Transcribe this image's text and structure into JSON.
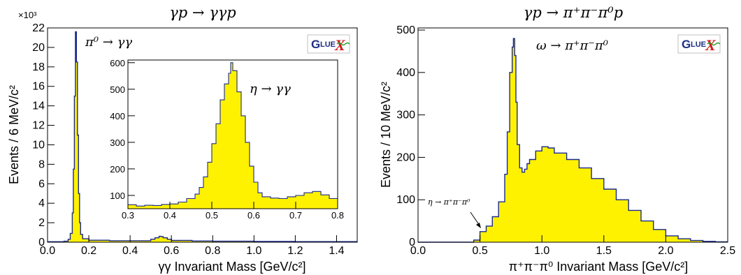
{
  "chart_data": [
    {
      "id": "left",
      "type": "histogram",
      "title": "γp → γγp",
      "xlabel": "γγ Invariant Mass [GeV/c²]",
      "ylabel": "Events / 6 MeV/c²",
      "y_multiplier_label": "×10³",
      "xlim": [
        0.0,
        1.5
      ],
      "ylim": [
        0,
        22
      ],
      "xticks": [
        "0.0",
        "0.2",
        "0.4",
        "0.6",
        "0.8",
        "1.0",
        "1.2",
        "1.4"
      ],
      "yticks": [
        "0",
        "2",
        "4",
        "6",
        "8",
        "10",
        "12",
        "14",
        "16",
        "18",
        "20",
        "22"
      ],
      "annotation": "π⁰ → γγ",
      "logo": {
        "g": "G",
        "lue": "LUE",
        "x": "X"
      },
      "x": [
        0.0,
        0.08,
        0.1,
        0.11,
        0.12,
        0.125,
        0.13,
        0.135,
        0.14,
        0.145,
        0.15,
        0.155,
        0.16,
        0.17,
        0.2,
        0.3,
        0.4,
        0.5,
        0.52,
        0.54,
        0.55,
        0.56,
        0.58,
        0.6,
        0.7,
        0.8,
        1.0,
        1.2,
        1.5
      ],
      "y": [
        0.05,
        0.1,
        0.3,
        0.9,
        3.0,
        7.5,
        15.0,
        21.6,
        18.5,
        11.0,
        5.0,
        2.0,
        0.8,
        0.35,
        0.2,
        0.15,
        0.15,
        0.3,
        0.45,
        0.6,
        0.58,
        0.45,
        0.3,
        0.18,
        0.12,
        0.1,
        0.08,
        0.06,
        0.05
      ],
      "inset": {
        "annotation": "η → γγ",
        "xlim": [
          0.3,
          0.8
        ],
        "ylim": [
          50,
          610
        ],
        "xticks": [
          "0.3",
          "0.4",
          "0.5",
          "0.6",
          "0.7",
          "0.8"
        ],
        "yticks": [
          "100",
          "200",
          "300",
          "400",
          "500",
          "600"
        ],
        "x": [
          0.3,
          0.32,
          0.34,
          0.36,
          0.38,
          0.4,
          0.42,
          0.44,
          0.46,
          0.47,
          0.48,
          0.49,
          0.5,
          0.51,
          0.52,
          0.53,
          0.54,
          0.545,
          0.55,
          0.56,
          0.57,
          0.58,
          0.59,
          0.6,
          0.61,
          0.62,
          0.64,
          0.66,
          0.68,
          0.7,
          0.72,
          0.74,
          0.76,
          0.78,
          0.8
        ],
        "y": [
          65,
          60,
          63,
          62,
          66,
          68,
          75,
          88,
          105,
          130,
          170,
          225,
          295,
          370,
          460,
          520,
          560,
          600,
          570,
          490,
          400,
          300,
          210,
          150,
          110,
          95,
          90,
          88,
          95,
          100,
          110,
          115,
          102,
          88,
          80
        ]
      }
    },
    {
      "id": "right",
      "type": "histogram",
      "title": "γp → π⁺π⁻π⁰p",
      "xlabel": "π⁺π⁻π⁰ Invariant Mass [GeV/c²]",
      "ylabel": "Events / 10 MeV/c²",
      "xlim": [
        0.0,
        2.5
      ],
      "ylim": [
        0,
        505
      ],
      "xticks": [
        "0.0",
        "0.5",
        "1.0",
        "1.5",
        "2.0",
        "2.5"
      ],
      "yticks": [
        "0",
        "100",
        "200",
        "300",
        "400",
        "500"
      ],
      "annotation": "ω → π⁺π⁻π⁰",
      "annotation2": "η → π⁺π⁻π⁰",
      "logo": {
        "g": "G",
        "lue": "LUE",
        "x": "X"
      },
      "x": [
        0.0,
        0.4,
        0.45,
        0.5,
        0.55,
        0.6,
        0.65,
        0.7,
        0.72,
        0.74,
        0.76,
        0.77,
        0.78,
        0.79,
        0.8,
        0.82,
        0.84,
        0.86,
        0.88,
        0.9,
        0.95,
        1.0,
        1.05,
        1.1,
        1.2,
        1.3,
        1.4,
        1.5,
        1.6,
        1.7,
        1.8,
        1.9,
        2.0,
        2.1,
        2.2,
        2.3,
        2.4,
        2.5
      ],
      "y": [
        0,
        0,
        5,
        25,
        38,
        60,
        95,
        160,
        260,
        400,
        460,
        480,
        440,
        330,
        230,
        175,
        165,
        172,
        185,
        195,
        215,
        225,
        222,
        210,
        195,
        175,
        150,
        125,
        100,
        75,
        50,
        30,
        15,
        8,
        4,
        2,
        1,
        0
      ]
    }
  ]
}
